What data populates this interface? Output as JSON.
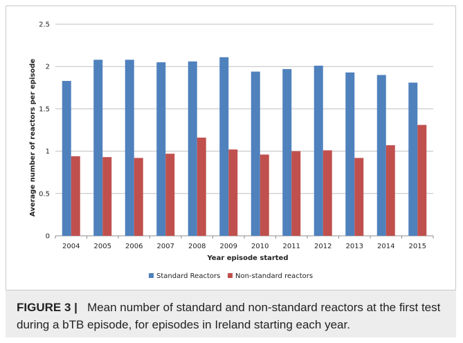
{
  "chart_data": {
    "type": "bar",
    "xlabel": "Year episode started",
    "ylabel": "Average number of reactors per episode",
    "ylim": [
      0,
      2.5
    ],
    "yticks": [
      "0",
      "0.5",
      "1",
      "1.5",
      "2",
      "2.5"
    ],
    "grid": true,
    "legend_position": "bottom",
    "categories": [
      "2004",
      "2005",
      "2006",
      "2007",
      "2008",
      "2009",
      "2010",
      "2011",
      "2012",
      "2013",
      "2014",
      "2015"
    ],
    "series": [
      {
        "name": "Standard Reactors",
        "color": "#4f81bd",
        "values": [
          1.83,
          2.08,
          2.08,
          2.05,
          2.06,
          2.11,
          1.94,
          1.97,
          2.01,
          1.93,
          1.9,
          1.81
        ]
      },
      {
        "name": "Non-standard reactors",
        "color": "#c0504d",
        "values": [
          0.94,
          0.93,
          0.92,
          0.97,
          1.16,
          1.02,
          0.96,
          1.0,
          1.01,
          0.92,
          1.07,
          1.31
        ]
      }
    ]
  },
  "caption": {
    "label": "FIGURE 3 |",
    "text": "Mean number of standard and non-standard reactors at the first test during a bTB episode, for episodes in Ireland starting each year."
  }
}
